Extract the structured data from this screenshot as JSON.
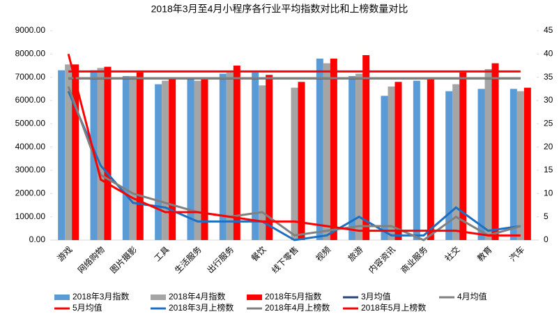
{
  "chart_data": {
    "type": "combo",
    "title": "2018年3月至4月小程序各行业平均指数对比和上榜数量对比",
    "categories": [
      "游戏",
      "网络购物",
      "图片摄影",
      "工具",
      "生活服务",
      "出行服务",
      "餐饮",
      "线下零售",
      "视频",
      "旅游",
      "内容资讯",
      "商业服务",
      "社交",
      "教育",
      "汽车"
    ],
    "ylim": [
      0,
      9000
    ],
    "yticks": [
      {
        "value": 0,
        "label": "0.00"
      },
      {
        "value": 1000,
        "label": "1000.00"
      },
      {
        "value": 2000,
        "label": "2000.00"
      },
      {
        "value": 3000,
        "label": "3000.00"
      },
      {
        "value": 4000,
        "label": "4000.00"
      },
      {
        "value": 5000,
        "label": "5000.00"
      },
      {
        "value": 6000,
        "label": "6000.00"
      },
      {
        "value": 7000,
        "label": "7000.00"
      },
      {
        "value": 8000,
        "label": "8000.00"
      },
      {
        "value": 9000,
        "label": "9000.00"
      }
    ],
    "y2lim": [
      0,
      45
    ],
    "y2ticks": [
      0,
      5,
      10,
      15,
      20,
      25,
      30,
      35,
      40,
      45
    ],
    "series": [
      {
        "name": "2018年3月指数",
        "type": "bar",
        "color": "#5b9bd5",
        "values": [
          7300,
          7300,
          7050,
          6700,
          6950,
          7150,
          7200,
          null,
          7800,
          7050,
          6200,
          6850,
          6400,
          6500,
          6500
        ]
      },
      {
        "name": "2018年4月指数",
        "type": "bar",
        "color": "#a5a5a5",
        "values": [
          7550,
          7400,
          7050,
          6850,
          6850,
          7200,
          6650,
          6550,
          7600,
          7150,
          6600,
          null,
          6700,
          7350,
          6400
        ]
      },
      {
        "name": "2018年5月指数",
        "type": "bar",
        "color": "#ff0000",
        "values": [
          7550,
          7450,
          7200,
          7000,
          6900,
          7500,
          7100,
          6800,
          7800,
          7950,
          6800,
          6900,
          7200,
          7600,
          6550
        ]
      },
      {
        "name": "3月均值",
        "type": "line",
        "color": "#264478",
        "values": [
          6950,
          6950,
          6950,
          6950,
          6950,
          6950,
          6950,
          6950,
          6950,
          6950,
          6950,
          6950,
          6950,
          6950,
          6950
        ]
      },
      {
        "name": "4月均值",
        "type": "line",
        "color": "#808080",
        "values": [
          6960,
          6960,
          6960,
          6960,
          6960,
          6960,
          6960,
          6960,
          6960,
          6960,
          6960,
          6960,
          6960,
          6960,
          6960
        ]
      },
      {
        "name": "5月均值",
        "type": "line",
        "color": "#ff0000",
        "values": [
          7250,
          7250,
          7250,
          7250,
          7250,
          7250,
          7250,
          7250,
          7250,
          7250,
          7250,
          7250,
          7250,
          7250,
          7250
        ]
      },
      {
        "name": "2018年3月上榜数",
        "type": "line",
        "axis": "y2",
        "color": "#1f6fc1",
        "values": [
          32,
          16,
          8,
          7,
          4,
          4,
          4,
          0,
          1,
          5,
          1,
          1,
          7,
          2,
          3
        ]
      },
      {
        "name": "2018年4月上榜数",
        "type": "line",
        "axis": "y2",
        "color": "#808080",
        "values": [
          33,
          14,
          10,
          8,
          6,
          5,
          6,
          1,
          2,
          3,
          3,
          0,
          5,
          1,
          3
        ]
      },
      {
        "name": "2018年5月上榜数",
        "type": "line",
        "axis": "y2",
        "color": "#ff0000",
        "values": [
          40,
          13,
          9,
          6,
          6,
          5,
          4,
          4,
          3,
          2,
          2,
          2,
          2,
          1,
          1
        ]
      }
    ]
  }
}
